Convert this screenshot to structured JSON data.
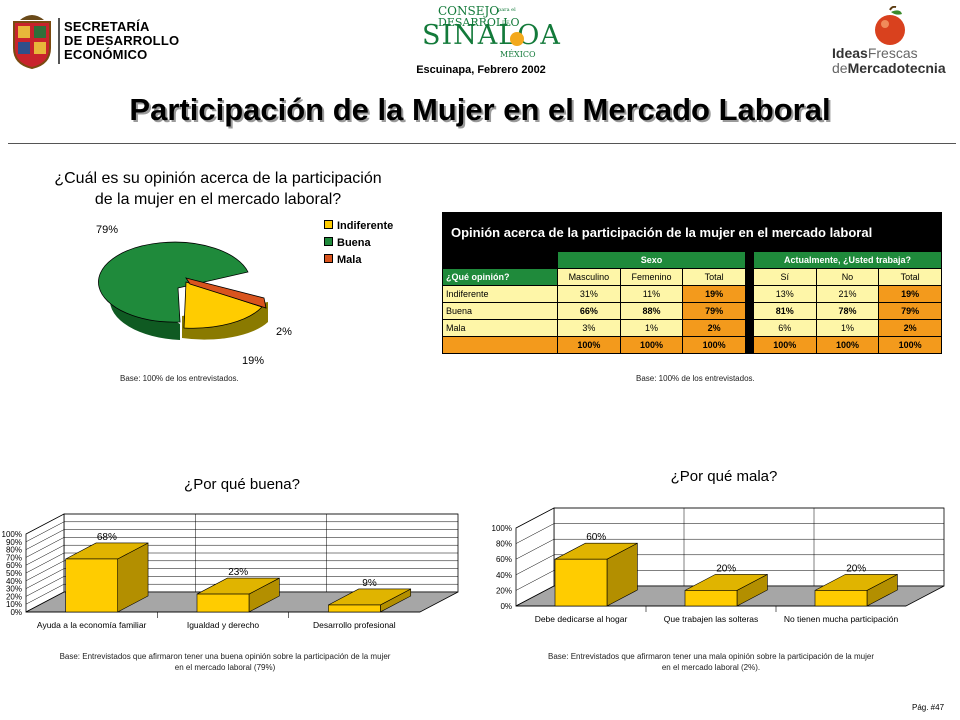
{
  "header": {
    "sec_line1": "SECRETARÍA",
    "sec_line2": "DE DESARROLLO",
    "sec_line3": "ECONÓMICO",
    "consejo_line1": "CONSEJO",
    "consejo_line2": "DESARROLLO",
    "consejo_small": "para el",
    "consejo_de": "DE",
    "consejo_line3": "SINALOA",
    "consejo_line4": "MÉXICO",
    "date": "Escuinapa, Febrero 2002",
    "ideas_a": "Ideas",
    "ideas_b": "Frescas",
    "ideas_c": "de",
    "ideas_d": "Mercadotecnia"
  },
  "title": "Participación de la Mujer en el Mercado Laboral",
  "pie": {
    "question_line1": "¿Cuál es su opinión acerca de la participación",
    "question_line2": "de la mujer en el mercado laboral?",
    "base": "Base:  100% de los entrevistados.",
    "chart_data": {
      "type": "pie",
      "categories": [
        "Indiferente",
        "Buena",
        "Mala"
      ],
      "values": [
        19,
        79,
        2
      ],
      "labels": [
        "19%",
        "79%",
        "2%"
      ],
      "colors": [
        "#ffcc00",
        "#1f8a3b",
        "#d9541e"
      ],
      "legend": "right"
    }
  },
  "table": {
    "title": "Opinión acerca de la participación de la mujer en el mercado laboral",
    "group_sexo": "Sexo",
    "group_trabaja": "Actualmente, ¿Usted trabaja?",
    "row_header": "¿Qué opinión?",
    "columns": [
      "Masculino",
      "Femenino",
      "Total",
      "Sí",
      "No",
      "Total"
    ],
    "rows": [
      {
        "label": "Indiferente",
        "cells": [
          "31%",
          "11%",
          "19%",
          "13%",
          "21%",
          "19%"
        ]
      },
      {
        "label": "Buena",
        "cells": [
          "66%",
          "88%",
          "79%",
          "81%",
          "78%",
          "79%"
        ]
      },
      {
        "label": "Mala",
        "cells": [
          "3%",
          "1%",
          "2%",
          "6%",
          "1%",
          "2%"
        ]
      },
      {
        "label": "",
        "cells": [
          "100%",
          "100%",
          "100%",
          "100%",
          "100%",
          "100%"
        ]
      }
    ],
    "base": "Base:  100% de los entrevistados."
  },
  "buena": {
    "title": "¿Por qué buena?",
    "base_line1": "Base:  Entrevistados que afirmaron tener una buena opinión sobre la participación de la mujer",
    "base_line2": "en el mercado laboral (79%)",
    "chart_data": {
      "type": "bar",
      "categories": [
        "Ayuda a la economía familiar",
        "Igualdad y derecho",
        "Desarrollo profesional"
      ],
      "values": [
        68,
        23,
        9
      ],
      "labels": [
        "68%",
        "23%",
        "9%"
      ],
      "ylim": [
        0,
        100
      ],
      "yticks": [
        "0%",
        "10%",
        "20%",
        "30%",
        "40%",
        "50%",
        "60%",
        "70%",
        "80%",
        "90%",
        "100%"
      ],
      "color": "#ffcc00"
    }
  },
  "mala": {
    "title": "¿Por qué mala?",
    "base_line1": "Base:  Entrevistados que afirmaron tener una mala opinión sobre la participación de la mujer",
    "base_line2": "en el mercado laboral (2%).",
    "chart_data": {
      "type": "bar",
      "categories": [
        "Debe dedicarse al hogar",
        "Que trabajen las solteras",
        "No tienen mucha participación"
      ],
      "values": [
        60,
        20,
        20
      ],
      "labels": [
        "60%",
        "20%",
        "20%"
      ],
      "ylim": [
        0,
        100
      ],
      "yticks": [
        "0%",
        "20%",
        "40%",
        "60%",
        "80%",
        "100%"
      ],
      "color": "#ffcc00"
    }
  },
  "page": "Pág. #47"
}
